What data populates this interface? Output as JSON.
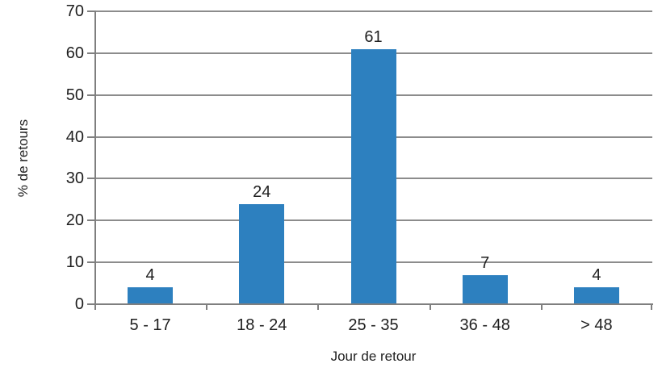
{
  "chart_data": {
    "type": "bar",
    "title": "",
    "categories": [
      "5 - 17",
      "18 - 24",
      "25 - 35",
      "36 - 48",
      "> 48"
    ],
    "values": [
      4,
      24,
      61,
      7,
      4
    ],
    "data_labels": [
      "4",
      "24",
      "61",
      "7",
      "4"
    ],
    "xlabel": "Jour de retour",
    "ylabel": "% de retours",
    "ylim": [
      0,
      70
    ],
    "yticks": [
      0,
      10,
      20,
      30,
      40,
      50,
      60,
      70
    ],
    "grid": true,
    "legend_position": "none",
    "colors": {
      "bar": "#2D80BF",
      "gridline": "#8C8C8C",
      "axis": "#7F7F7F",
      "text": "#1F1F1F",
      "background": "#FFFFFF"
    }
  }
}
